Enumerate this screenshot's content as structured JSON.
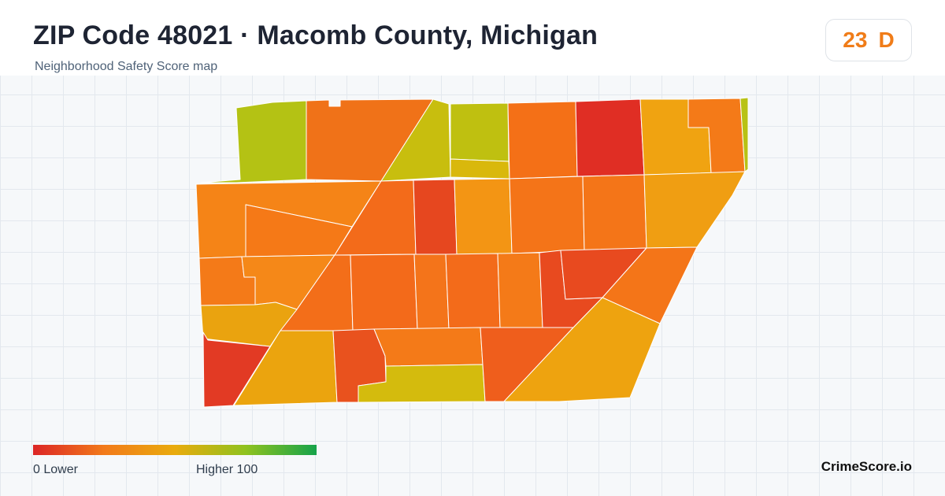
{
  "header": {
    "title": "ZIP Code 48021 · Macomb County, Michigan",
    "subtitle": "Neighborhood Safety Score map"
  },
  "score": {
    "value": "23",
    "grade": "D",
    "color": "#f07c18"
  },
  "legend": {
    "min_label": "0  Lower",
    "max_label": "Higher  100",
    "colors": [
      "#dc2626",
      "#f27a1a",
      "#e9ab0d",
      "#8fc21f",
      "#16a34a"
    ]
  },
  "brand": "CrimeScore.io"
}
